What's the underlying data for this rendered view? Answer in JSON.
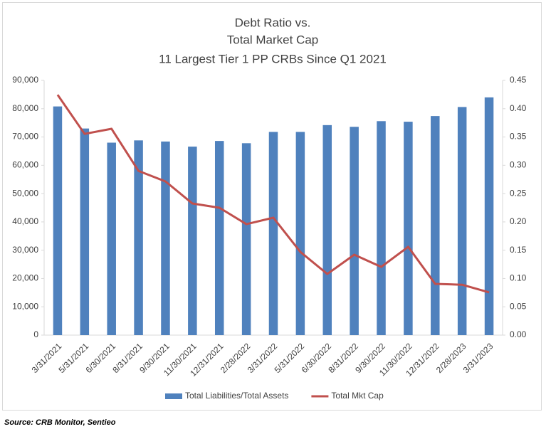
{
  "chart_data": {
    "type": "bar-line",
    "title": [
      "Debt Ratio vs.",
      "Total Market Cap",
      "11 Largest Tier 1 PP CRBs Since Q1 2021"
    ],
    "source": "Source: CRB Monitor, Sentieo",
    "categories": [
      "3/31/2021",
      "5/31/2021",
      "6/30/2021",
      "8/31/2021",
      "9/30/2021",
      "11/30/2021",
      "12/31/2021",
      "2/28/2022",
      "3/31/2022",
      "5/31/2022",
      "6/30/2022",
      "8/31/2022",
      "9/30/2022",
      "11/30/2022",
      "12/31/2022",
      "2/28/2023",
      "3/31/2023"
    ],
    "series": [
      {
        "name": "Total Liabilities/Total Assets",
        "type": "bar",
        "axis": "y2",
        "color": "#4f81bd",
        "values": [
          0.404,
          0.365,
          0.34,
          0.344,
          0.342,
          0.333,
          0.343,
          0.339,
          0.359,
          0.359,
          0.371,
          0.368,
          0.378,
          0.377,
          0.387,
          0.403,
          0.42
        ]
      },
      {
        "name": "Total Mkt Cap",
        "type": "line",
        "color": "#c0504d",
        "values": [
          84900,
          71100,
          72900,
          58000,
          54300,
          46500,
          45000,
          39200,
          41500,
          29400,
          21600,
          28400,
          24100,
          31200,
          18100,
          17800,
          15100
        ]
      }
    ],
    "ylim": [
      0,
      90000
    ],
    "yticks": [
      0,
      {
        "value": 10000,
        "label": "10,000"
      },
      {
        "value": 20000,
        "label": "20,000"
      },
      {
        "value": 30000,
        "label": "30,000"
      },
      {
        "value": 40000,
        "label": "40,000"
      },
      {
        "value": 50000,
        "label": "50,000"
      },
      {
        "value": 60000,
        "label": "60,000"
      },
      {
        "value": 70000,
        "label": "70,000"
      },
      {
        "value": 80000,
        "label": "80,000"
      },
      {
        "value": 90000,
        "label": "90,000"
      }
    ],
    "y2lim": [
      0,
      0.45
    ],
    "y2ticks": [
      {
        "value": 0,
        "label": "0.00"
      },
      {
        "value": 0.05,
        "label": "0.05"
      },
      {
        "value": 0.1,
        "label": "0.10"
      },
      {
        "value": 0.15,
        "label": "0.15"
      },
      {
        "value": 0.2,
        "label": "0.20"
      },
      {
        "value": 0.25,
        "label": "0.25"
      },
      {
        "value": 0.3,
        "label": "0.30"
      },
      {
        "value": 0.35,
        "label": "0.35"
      },
      {
        "value": 0.4,
        "label": "0.40"
      },
      {
        "value": 0.45,
        "label": "0.45"
      }
    ],
    "grid": false,
    "legend": "bottom"
  }
}
